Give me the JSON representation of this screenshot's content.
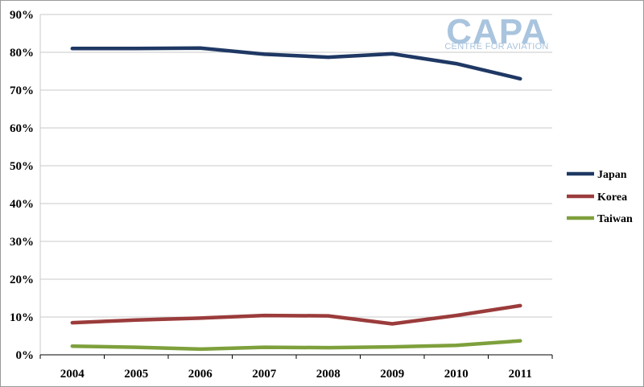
{
  "logo": {
    "main": "CAPA",
    "sub": "CENTRE FOR AVIATION"
  },
  "chart_data": {
    "type": "line",
    "title": "",
    "xlabel": "",
    "ylabel": "",
    "x": [
      "2004",
      "2005",
      "2006",
      "2007",
      "2008",
      "2009",
      "2010",
      "2011"
    ],
    "y_ticks": [
      "0%",
      "10%",
      "20%",
      "30%",
      "40%",
      "50%",
      "60%",
      "70%",
      "80%",
      "90%"
    ],
    "ylim": [
      0,
      90
    ],
    "grid": true,
    "legend_position": "right",
    "series": [
      {
        "name": "Japan",
        "color": "#1f3864",
        "values": [
          81.0,
          81.0,
          81.1,
          79.5,
          78.7,
          79.6,
          77.0,
          73.0
        ]
      },
      {
        "name": "Korea",
        "color": "#9b3b3b",
        "values": [
          8.5,
          9.2,
          9.7,
          10.4,
          10.3,
          8.2,
          10.4,
          13.0
        ]
      },
      {
        "name": "Taiwan",
        "color": "#7ea03c",
        "values": [
          2.3,
          2.0,
          1.5,
          2.0,
          1.9,
          2.1,
          2.5,
          3.7
        ]
      }
    ]
  }
}
